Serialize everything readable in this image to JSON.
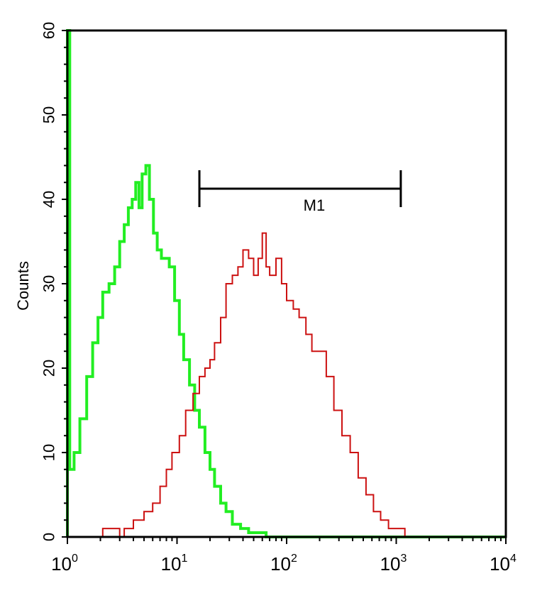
{
  "chart_data": {
    "type": "histogram",
    "title": "",
    "xlabel": "",
    "ylabel": "Counts",
    "xscale": "log",
    "xlim": [
      1,
      10000
    ],
    "ylim": [
      0,
      60
    ],
    "yticks": [
      0,
      10,
      20,
      30,
      40,
      50,
      60
    ],
    "xticks": [
      {
        "value": 1,
        "base": "10",
        "exp": "0"
      },
      {
        "value": 10,
        "base": "10",
        "exp": "1"
      },
      {
        "value": 100,
        "base": "10",
        "exp": "2"
      },
      {
        "value": 1000,
        "base": "10",
        "exp": "3"
      },
      {
        "value": 10000,
        "base": "10",
        "exp": "4"
      }
    ],
    "gate": {
      "label": "M1",
      "x_start": 16,
      "x_end": 1100
    },
    "series": [
      {
        "color": "#22ee22",
        "points": [
          [
            1.0,
            0
          ],
          [
            1.0,
            60
          ],
          [
            1.05,
            35
          ],
          [
            1.05,
            8
          ],
          [
            1.15,
            10
          ],
          [
            1.3,
            14
          ],
          [
            1.5,
            19
          ],
          [
            1.7,
            23
          ],
          [
            1.9,
            26
          ],
          [
            2.1,
            29
          ],
          [
            2.4,
            30
          ],
          [
            2.7,
            32
          ],
          [
            3.0,
            35
          ],
          [
            3.3,
            37
          ],
          [
            3.6,
            39
          ],
          [
            3.9,
            40
          ],
          [
            4.2,
            42
          ],
          [
            4.5,
            39
          ],
          [
            4.8,
            43
          ],
          [
            5.2,
            44
          ],
          [
            5.6,
            40
          ],
          [
            6.1,
            36
          ],
          [
            6.6,
            34
          ],
          [
            7.2,
            33
          ],
          [
            7.8,
            33
          ],
          [
            8.5,
            32
          ],
          [
            9.5,
            28
          ],
          [
            10.5,
            24
          ],
          [
            11.5,
            21
          ],
          [
            13.0,
            18
          ],
          [
            14.5,
            15
          ],
          [
            16.0,
            13
          ],
          [
            18.0,
            10
          ],
          [
            20.0,
            8
          ],
          [
            22.0,
            6
          ],
          [
            25.0,
            4
          ],
          [
            28.0,
            3
          ],
          [
            32.0,
            1.5
          ],
          [
            38.0,
            1
          ],
          [
            45.0,
            0.5
          ],
          [
            55.0,
            0.5
          ],
          [
            65.0,
            0
          ],
          [
            10000,
            0
          ]
        ]
      },
      {
        "color": "#cc1111",
        "points": [
          [
            1.0,
            0
          ],
          [
            2.0,
            0
          ],
          [
            2.1,
            1
          ],
          [
            2.8,
            1
          ],
          [
            3.0,
            0
          ],
          [
            3.3,
            1
          ],
          [
            4.0,
            2
          ],
          [
            5.0,
            3
          ],
          [
            6.0,
            4
          ],
          [
            7.0,
            6
          ],
          [
            8.0,
            8
          ],
          [
            9.0,
            10
          ],
          [
            10.5,
            12
          ],
          [
            12.0,
            15
          ],
          [
            14.0,
            17
          ],
          [
            16.0,
            19
          ],
          [
            18.0,
            20
          ],
          [
            20.0,
            21
          ],
          [
            22.0,
            23
          ],
          [
            25.0,
            26
          ],
          [
            28.0,
            30
          ],
          [
            32.0,
            31
          ],
          [
            36.0,
            32
          ],
          [
            40.0,
            34
          ],
          [
            45.0,
            33
          ],
          [
            50.0,
            31
          ],
          [
            55.0,
            33
          ],
          [
            60.0,
            36
          ],
          [
            65.0,
            32
          ],
          [
            70.0,
            31
          ],
          [
            80.0,
            33
          ],
          [
            90.0,
            30
          ],
          [
            100.0,
            28
          ],
          [
            115.0,
            27
          ],
          [
            130.0,
            26
          ],
          [
            150.0,
            24
          ],
          [
            170.0,
            22
          ],
          [
            200.0,
            22
          ],
          [
            230.0,
            19
          ],
          [
            270.0,
            15
          ],
          [
            320.0,
            12
          ],
          [
            380.0,
            10
          ],
          [
            450.0,
            7
          ],
          [
            530.0,
            5
          ],
          [
            620.0,
            3
          ],
          [
            720.0,
            2
          ],
          [
            850.0,
            1
          ],
          [
            1000.0,
            1
          ],
          [
            1200.0,
            0
          ],
          [
            10000,
            0
          ]
        ]
      }
    ]
  }
}
